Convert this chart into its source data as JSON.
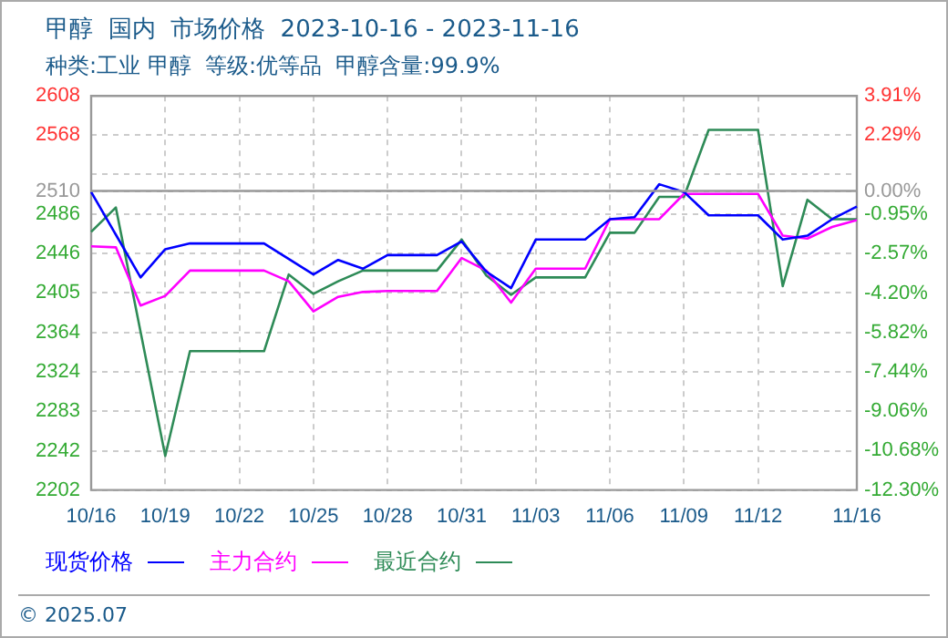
{
  "chart_data": {
    "type": "line",
    "title": "甲醇  国内  市场价格  2023-10-16 - 2023-11-16",
    "subtitle": "种类:工业 甲醇  等级:优等品  甲醇含量:99.9%",
    "categories": [
      "10/16",
      null,
      null,
      "10/19",
      null,
      null,
      "10/22",
      null,
      null,
      "10/25",
      null,
      null,
      "10/28",
      null,
      null,
      "10/31",
      null,
      null,
      "11/03",
      null,
      null,
      "11/06",
      null,
      null,
      "11/09",
      null,
      null,
      "11/12",
      null,
      null,
      null,
      "11/16"
    ],
    "series": [
      {
        "name": "现货价格",
        "color": "#0000ff",
        "values": [
          2509,
          2465,
          2421,
          2450,
          2456,
          2456,
          2456,
          2456,
          2440,
          2424,
          2439,
          2430,
          2444,
          2444,
          2444,
          2458,
          2427,
          2410,
          2460,
          2460,
          2460,
          2481,
          2483,
          2517,
          2509,
          2485,
          2485,
          2485,
          2460,
          2464,
          2481,
          2494
        ]
      },
      {
        "name": "主力合约",
        "color": "#ff00ff",
        "values": [
          2453,
          2452,
          2392,
          2402,
          2428,
          2428,
          2428,
          2428,
          2417,
          2386,
          2401,
          2406,
          2407,
          2407,
          2407,
          2441,
          2428,
          2395,
          2430,
          2430,
          2430,
          2481,
          2481,
          2481,
          2507,
          2507,
          2507,
          2507,
          2464,
          2461,
          2473,
          2480
        ]
      },
      {
        "name": "最近合约",
        "color": "#2e8b57",
        "values": [
          2468,
          2493,
          2365,
          2237,
          2345,
          2345,
          2345,
          2345,
          2424,
          2404,
          2417,
          2428,
          2428,
          2428,
          2428,
          2460,
          2423,
          2403,
          2421,
          2421,
          2421,
          2467,
          2467,
          2504,
          2504,
          2573,
          2573,
          2573,
          2412,
          2501,
          2481,
          2481
        ]
      }
    ],
    "ylim": [
      2202,
      2608
    ],
    "yticks": [
      2202,
      2242,
      2283,
      2324,
      2364,
      2405,
      2446,
      2486,
      {
        "value": 2510,
        "label": "2510"
      },
      {
        "value": 2527,
        "label": null
      },
      2568,
      2608
    ],
    "y2lim": [
      -12.3,
      3.91
    ],
    "y2ticks": [
      {
        "value": -12.3,
        "label": "-12.30%"
      },
      {
        "value": -10.68,
        "label": "-10.68%"
      },
      {
        "value": -9.06,
        "label": "-9.06%"
      },
      {
        "value": -7.44,
        "label": "-7.44%"
      },
      {
        "value": -5.82,
        "label": "-5.82%"
      },
      {
        "value": -4.2,
        "label": "-4.20%"
      },
      {
        "value": -2.57,
        "label": "-2.57%"
      },
      {
        "value": -0.95,
        "label": "-0.95%"
      },
      {
        "value": 0.0,
        "label": "0.00%"
      },
      {
        "value": 2.29,
        "label": "2.29%"
      },
      {
        "value": 3.91,
        "label": "3.91%"
      }
    ],
    "ref_lines": [
      {
        "axis": "y",
        "value": 2510,
        "color": "#999999"
      }
    ],
    "grid": true,
    "legend": "bottom",
    "marker": "none",
    "annotations": [
      "© 2025.07"
    ]
  }
}
